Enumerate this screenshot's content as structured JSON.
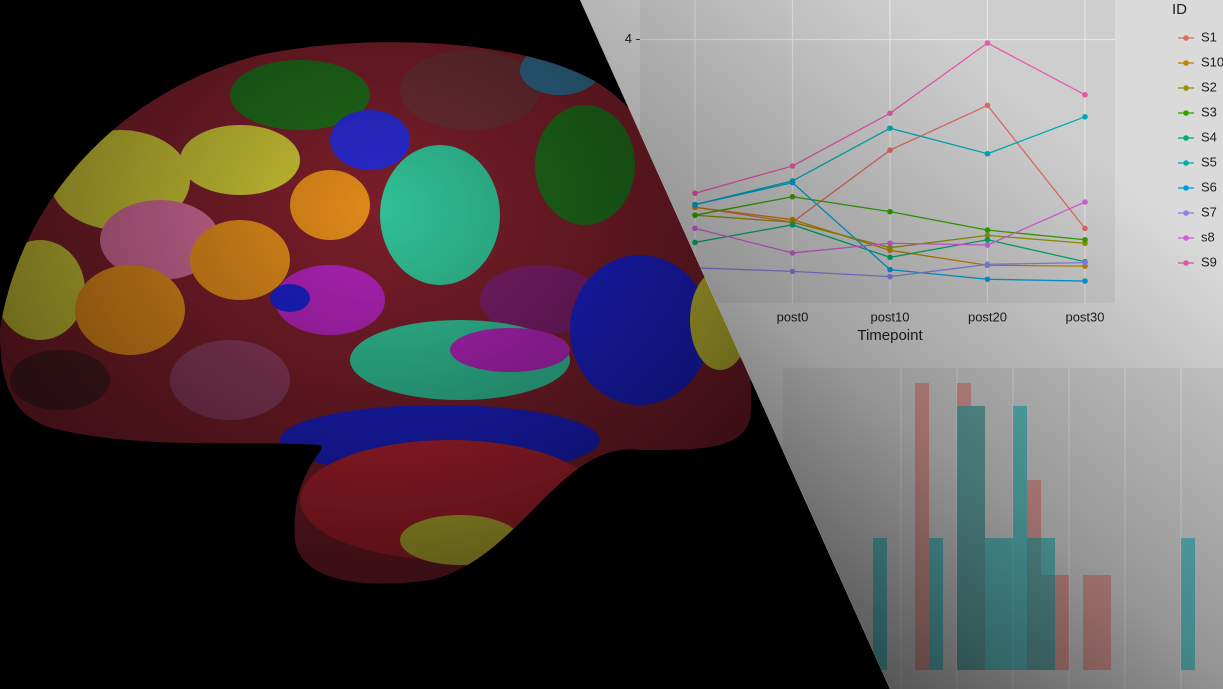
{
  "chart_data": [
    {
      "type": "line",
      "x_label": "Timepoint",
      "legend_title": "ID",
      "legend": "right",
      "grid": true,
      "categories": [
        null,
        "post0",
        "post10",
        "post20",
        "post30"
      ],
      "ylim": [
        1,
        4.45
      ],
      "yticks": [
        4
      ],
      "series": [
        {
          "name": "S1",
          "color": "#F8766D",
          "values": [
            2.09,
            1.92,
            2.74,
            3.25,
            1.85
          ]
        },
        {
          "name": "S10",
          "color": "#D89000",
          "values": [
            2.09,
            1.95,
            1.6,
            1.43,
            1.42
          ]
        },
        {
          "name": "S2",
          "color": "#A3A500",
          "values": [
            2.0,
            1.92,
            1.63,
            1.77,
            1.68
          ]
        },
        {
          "name": "S3",
          "color": "#39B600",
          "values": [
            2.0,
            2.21,
            2.04,
            1.83,
            1.72
          ]
        },
        {
          "name": "S4",
          "color": "#00BF7D",
          "values": [
            1.69,
            1.89,
            1.52,
            1.72,
            1.47
          ]
        },
        {
          "name": "S5",
          "color": "#00BFC4",
          "values": [
            2.12,
            2.39,
            2.99,
            2.7,
            3.12
          ]
        },
        {
          "name": "S6",
          "color": "#00B0F6",
          "values": [
            2.12,
            2.37,
            1.38,
            1.27,
            1.25
          ]
        },
        {
          "name": "S7",
          "color": "#9590FF",
          "values": [
            1.4,
            1.36,
            1.3,
            1.44,
            1.46
          ]
        },
        {
          "name": "s8",
          "color": "#E76BF3",
          "values": [
            1.85,
            1.57,
            1.68,
            1.66,
            2.15
          ]
        },
        {
          "name": "S9",
          "color": "#FF62BC",
          "values": [
            2.25,
            2.56,
            3.16,
            3.96,
            3.37
          ]
        }
      ]
    },
    {
      "type": "histogram",
      "grid": true,
      "xlim": [
        0,
        25
      ],
      "ylim": [
        0,
        3
      ],
      "bins": [
        0,
        1,
        2,
        3,
        4,
        5,
        6,
        7,
        8,
        9,
        10,
        11,
        12,
        13,
        14,
        15,
        16,
        17,
        18,
        19,
        20,
        21,
        22,
        23,
        24,
        25
      ],
      "series": [
        {
          "color": "#F8766D",
          "values": [
            0,
            0,
            0,
            2.87,
            0,
            0,
            2.87,
            2.64,
            0,
            0,
            0,
            1.9,
            0.95,
            0.95,
            0,
            0.95,
            0.95,
            0,
            0,
            0,
            0,
            0,
            0,
            0,
            0
          ]
        },
        {
          "color": "#00BFC4",
          "values": [
            1.32,
            0,
            0,
            0,
            1.32,
            0,
            2.64,
            2.64,
            1.32,
            1.32,
            2.64,
            1.32,
            1.32,
            0,
            0,
            0,
            0,
            0,
            0,
            0,
            0,
            0,
            1.32,
            0,
            0
          ]
        }
      ]
    }
  ]
}
